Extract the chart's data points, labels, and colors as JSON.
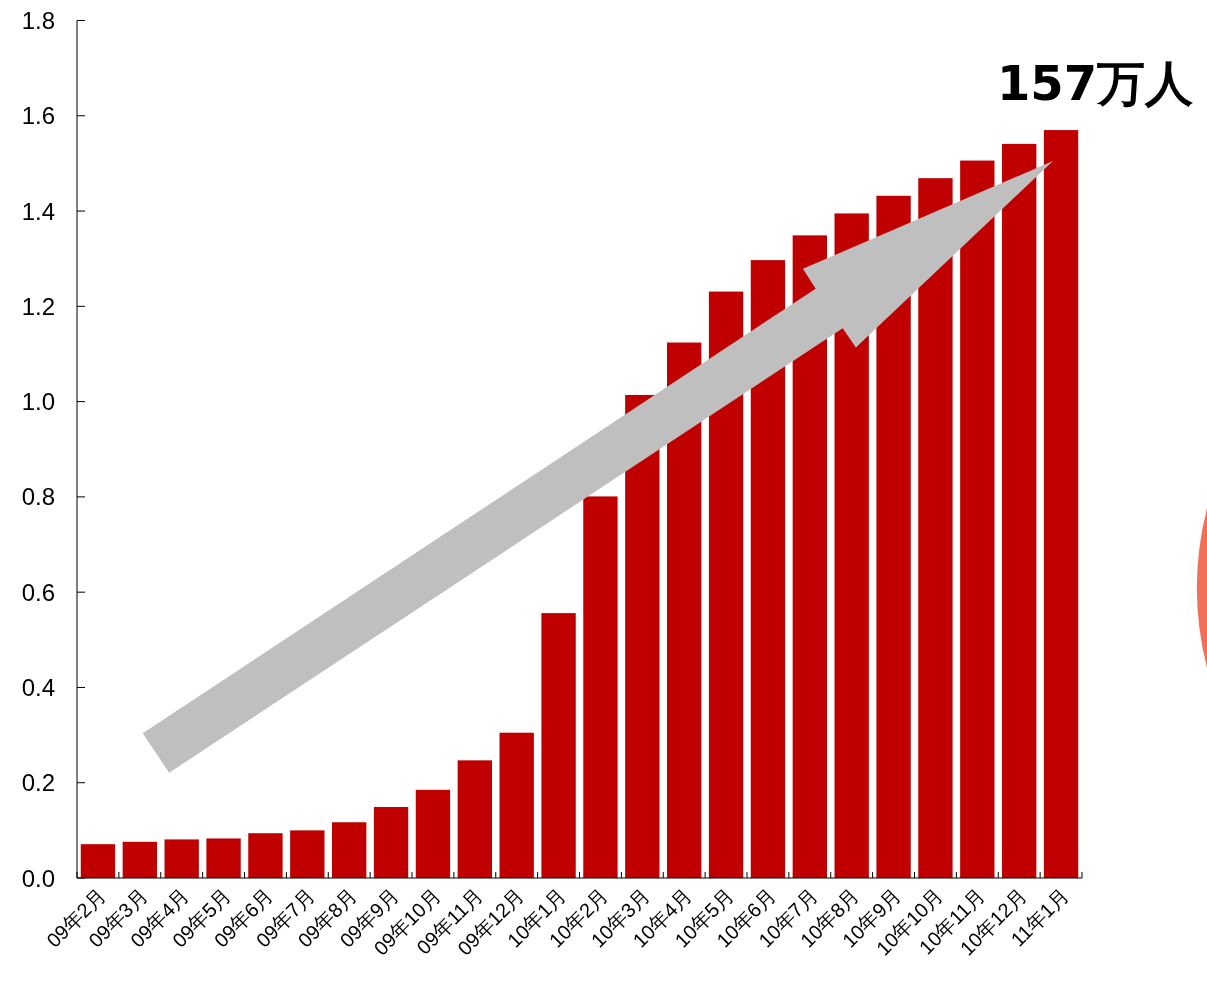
{
  "chart_data": {
    "type": "bar",
    "categories": [
      "09年2月",
      "09年3月",
      "09年4月",
      "09年5月",
      "09年6月",
      "09年7月",
      "09年8月",
      "09年9月",
      "09年10月",
      "09年11月",
      "09年12月",
      "10年1月",
      "10年2月",
      "10年3月",
      "10年4月",
      "10年5月",
      "10年6月",
      "10年7月",
      "10年8月",
      "10年9月",
      "10年10月",
      "10年11月",
      "10年12月",
      "11年1月"
    ],
    "values": [
      0.071,
      0.076,
      0.081,
      0.083,
      0.094,
      0.1,
      0.117,
      0.149,
      0.185,
      0.247,
      0.305,
      0.556,
      0.801,
      1.014,
      1.124,
      1.231,
      1.297,
      1.349,
      1.395,
      1.432,
      1.469,
      1.506,
      1.541,
      1.57
    ],
    "color": "#c00000",
    "ylim": [
      0,
      1.8
    ],
    "yticks": [
      {
        "value": 0,
        "label": "0.0"
      },
      0.2,
      0.4,
      0.6,
      0.8,
      {
        "value": 1,
        "label": "1.0"
      },
      1.2,
      1.4,
      1.6,
      1.8
    ],
    "annotations": [
      {
        "text": "157万人",
        "x": "11年1月",
        "y": 1.57
      }
    ]
  }
}
